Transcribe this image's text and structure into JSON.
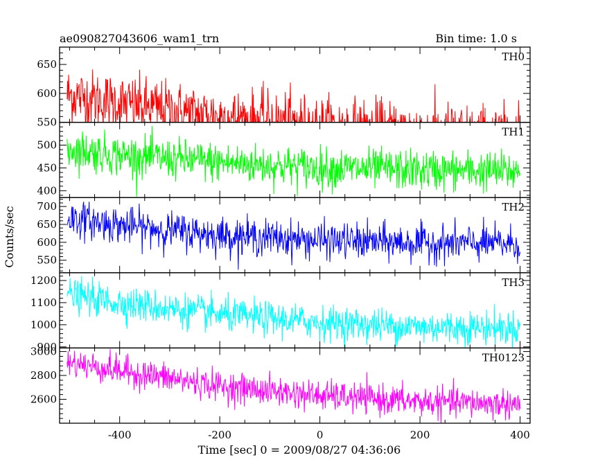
{
  "chart_data": {
    "type": "line",
    "title": "ae090827043606_wam1_trn",
    "subtitle": "Bin time: 1.0 s",
    "xlabel": "Time [sec] 0 = 2009/08/27 04:36:06",
    "ylabel": "Counts/sec",
    "xlim": [
      -520,
      420
    ],
    "x_ticks": [
      "-400",
      "-200",
      "0",
      "200",
      "400"
    ],
    "grid": false,
    "legend": "none",
    "sampling": {
      "x_start": -505,
      "x_end": 400,
      "step": 1
    },
    "panels": [
      {
        "name": "TH0",
        "color": "#ff0000",
        "ylim": [
          550,
          680
        ],
        "y_ticks": [
          "550",
          "600",
          "650"
        ],
        "y_minor_ticks": [
          "500",
          "550",
          "600",
          "650"
        ],
        "trend": {
          "x": [
            -505,
            -400,
            -200,
            0,
            200,
            400
          ],
          "y": [
            598,
            583,
            560,
            545,
            535,
            528
          ]
        },
        "noise": 25
      },
      {
        "name": "TH1",
        "color": "#00ff00",
        "ylim": [
          385,
          550
        ],
        "y_ticks": [
          "400",
          "450",
          "500"
        ],
        "trend": {
          "x": [
            -505,
            -400,
            -200,
            0,
            200,
            400
          ],
          "y": [
            492,
            478,
            462,
            450,
            445,
            442
          ]
        },
        "noise": 22
      },
      {
        "name": "TH2",
        "color": "#0000ff",
        "ylim": [
          515,
          725
        ],
        "y_ticks": [
          "550",
          "600",
          "650",
          "700"
        ],
        "trend": {
          "x": [
            -505,
            -400,
            -200,
            0,
            200,
            400
          ],
          "y": [
            668,
            648,
            620,
            605,
            598,
            596
          ]
        },
        "noise": 25
      },
      {
        "name": "TH3",
        "color": "#00ffff",
        "ylim": [
          895,
          1235
        ],
        "y_ticks": [
          "900",
          "1000",
          "1100",
          "1200"
        ],
        "trend": {
          "x": [
            -505,
            -400,
            -200,
            0,
            200,
            400
          ],
          "y": [
            1135,
            1100,
            1045,
            1010,
            990,
            985
          ]
        },
        "noise": 38
      },
      {
        "name": "TH0123",
        "color": "#ff00ff",
        "ylim": [
          2400,
          3030
        ],
        "y_ticks": [
          "2600",
          "2800",
          "3000"
        ],
        "trend": {
          "x": [
            -505,
            -400,
            -200,
            0,
            200,
            400
          ],
          "y": [
            2910,
            2840,
            2710,
            2630,
            2580,
            2560
          ]
        },
        "noise": 62
      }
    ]
  }
}
